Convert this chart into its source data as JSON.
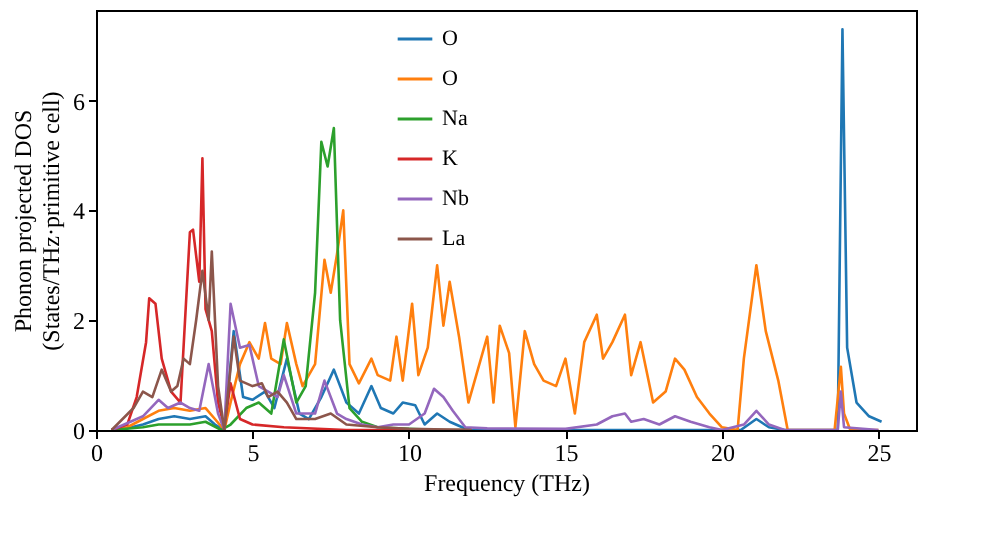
{
  "chart_data": {
    "type": "line",
    "xlabel": "Frequency (THz)",
    "ylabel": "Phonon projected DOS\n(States/THz·primitive cell)",
    "xlim": [
      0,
      26.2
    ],
    "ylim": [
      0,
      7.65
    ],
    "xticks": [
      0,
      5,
      10,
      15,
      20,
      25
    ],
    "yticks": [
      0,
      2,
      4,
      6
    ],
    "grid": false,
    "legend": "top",
    "line_style": "solid",
    "marker": "none",
    "series": [
      {
        "name": "O",
        "color": "#1f77b4",
        "x": [
          0.5,
          1,
          1.5,
          2,
          2.5,
          3,
          3.5,
          3.8,
          4.1,
          4.4,
          4.7,
          5.0,
          5.4,
          5.7,
          6.1,
          6.5,
          6.8,
          7.2,
          7.6,
          8.0,
          8.4,
          8.8,
          9.1,
          9.5,
          9.8,
          10.2,
          10.5,
          10.9,
          11.3,
          11.7,
          12,
          20.6,
          21.1,
          21.5,
          22,
          23.7,
          23.85,
          24.0,
          24.3,
          24.7,
          25.1
        ],
        "values": [
          0,
          0.03,
          0.1,
          0.2,
          0.25,
          0.2,
          0.25,
          0.1,
          0,
          1.8,
          0.6,
          0.55,
          0.7,
          0.4,
          1.3,
          0.3,
          0.2,
          0.6,
          1.1,
          0.5,
          0.3,
          0.8,
          0.4,
          0.3,
          0.5,
          0.45,
          0.1,
          0.3,
          0.15,
          0.05,
          0,
          0,
          0.2,
          0.05,
          0,
          0,
          7.3,
          1.5,
          0.5,
          0.25,
          0.15
        ]
      },
      {
        "name": "O",
        "color": "#ff7f0e",
        "x": [
          0.5,
          1,
          1.5,
          2,
          2.5,
          3,
          3.5,
          3.8,
          4.1,
          4.3,
          4.6,
          4.9,
          5.2,
          5.4,
          5.6,
          5.9,
          6.1,
          6.4,
          6.6,
          7.0,
          7.3,
          7.5,
          7.7,
          7.9,
          8.1,
          8.4,
          8.8,
          9.0,
          9.4,
          9.6,
          9.8,
          10.1,
          10.3,
          10.6,
          10.9,
          11.1,
          11.3,
          11.6,
          11.9,
          12.2,
          12.5,
          12.7,
          12.9,
          13.2,
          13.4,
          13.7,
          14.0,
          14.3,
          14.7,
          15.0,
          15.3,
          15.6,
          16.0,
          16.2,
          16.5,
          16.9,
          17.1,
          17.4,
          17.8,
          18.2,
          18.5,
          18.8,
          19.2,
          19.6,
          20.0,
          20.5,
          20.7,
          21.1,
          21.4,
          21.8,
          22.1,
          23.6,
          23.8,
          23.9,
          24.1,
          25
        ],
        "values": [
          0,
          0.05,
          0.2,
          0.35,
          0.4,
          0.35,
          0.4,
          0.2,
          0,
          0.5,
          1.2,
          1.6,
          1.3,
          1.95,
          1.3,
          1.2,
          1.95,
          1.2,
          0.8,
          1.2,
          3.1,
          2.5,
          3.2,
          4.0,
          1.2,
          0.85,
          1.3,
          1.0,
          0.9,
          1.7,
          0.9,
          2.3,
          1.0,
          1.5,
          3.0,
          1.9,
          2.7,
          1.7,
          0.5,
          1.1,
          1.7,
          0.5,
          1.9,
          1.4,
          0.05,
          1.8,
          1.2,
          0.9,
          0.8,
          1.3,
          0.3,
          1.6,
          2.1,
          1.3,
          1.6,
          2.1,
          1.0,
          1.6,
          0.5,
          0.7,
          1.3,
          1.1,
          0.6,
          0.3,
          0.05,
          0,
          1.3,
          3.0,
          1.8,
          0.9,
          0,
          0,
          1.15,
          0.3,
          0,
          0
        ]
      },
      {
        "name": "Na",
        "color": "#2ca02c",
        "x": [
          0.5,
          1.5,
          2,
          3,
          3.5,
          4.0,
          4.3,
          4.8,
          5.2,
          5.6,
          6.0,
          6.4,
          6.7,
          7.0,
          7.2,
          7.4,
          7.6,
          7.8,
          8.1,
          8.5,
          9,
          10,
          11,
          12
        ],
        "values": [
          0,
          0.05,
          0.1,
          0.1,
          0.15,
          0,
          0.1,
          0.4,
          0.5,
          0.3,
          1.65,
          0.5,
          0.8,
          2.5,
          5.25,
          4.8,
          5.5,
          2.0,
          0.4,
          0.15,
          0.05,
          0.02,
          0,
          0
        ]
      },
      {
        "name": "K",
        "color": "#d62728",
        "x": [
          0.5,
          1.0,
          1.3,
          1.6,
          1.7,
          1.9,
          2.1,
          2.4,
          2.7,
          3.0,
          3.1,
          3.3,
          3.4,
          3.5,
          3.7,
          3.9,
          4.1,
          4.3,
          4.6,
          5,
          6,
          8,
          12
        ],
        "values": [
          0,
          0.1,
          0.6,
          1.6,
          2.4,
          2.3,
          1.3,
          0.7,
          0.5,
          3.6,
          3.65,
          2.7,
          4.95,
          2.2,
          1.8,
          0.5,
          0.05,
          0.85,
          0.2,
          0.1,
          0.05,
          0,
          0
        ]
      },
      {
        "name": "Nb",
        "color": "#9467bd",
        "x": [
          0.5,
          1.5,
          2.0,
          2.3,
          2.7,
          3.0,
          3.3,
          3.6,
          3.9,
          4.1,
          4.3,
          4.6,
          4.9,
          5.2,
          5.5,
          5.8,
          6.0,
          6.4,
          7.0,
          7.3,
          7.7,
          8.0,
          8.5,
          9,
          9.5,
          10,
          10.5,
          10.8,
          11.1,
          11.4,
          11.8,
          12.5,
          15,
          16,
          16.5,
          16.9,
          17.1,
          17.5,
          18.0,
          18.5,
          19.0,
          19.6,
          20,
          20.7,
          21.1,
          21.5,
          22,
          23.7,
          23.8,
          23.9,
          25
        ],
        "values": [
          0,
          0.25,
          0.55,
          0.4,
          0.5,
          0.4,
          0.35,
          1.2,
          0.3,
          0,
          2.3,
          1.5,
          1.55,
          0.8,
          0.7,
          0.6,
          1.0,
          0.3,
          0.3,
          0.9,
          0.3,
          0.2,
          0.1,
          0.05,
          0.1,
          0.1,
          0.3,
          0.75,
          0.6,
          0.35,
          0.05,
          0.03,
          0.02,
          0.1,
          0.25,
          0.3,
          0.15,
          0.2,
          0.1,
          0.25,
          0.15,
          0.05,
          0,
          0.1,
          0.35,
          0.1,
          0,
          0,
          0.7,
          0.05,
          0
        ]
      },
      {
        "name": "La",
        "color": "#8c564b",
        "x": [
          0.5,
          1.2,
          1.5,
          1.8,
          2.1,
          2.4,
          2.6,
          2.8,
          3.0,
          3.2,
          3.4,
          3.6,
          3.7,
          3.9,
          4.1,
          4.4,
          4.6,
          5.0,
          5.3,
          5.5,
          5.8,
          6.1,
          6.4,
          7.0,
          7.5,
          8,
          9,
          10,
          12
        ],
        "values": [
          0,
          0.4,
          0.7,
          0.6,
          1.1,
          0.7,
          0.8,
          1.3,
          1.2,
          2.0,
          2.9,
          2.0,
          3.25,
          0.8,
          0,
          1.7,
          0.9,
          0.8,
          0.85,
          0.6,
          0.7,
          0.5,
          0.2,
          0.2,
          0.3,
          0.1,
          0.05,
          0.02,
          0
        ]
      }
    ]
  }
}
